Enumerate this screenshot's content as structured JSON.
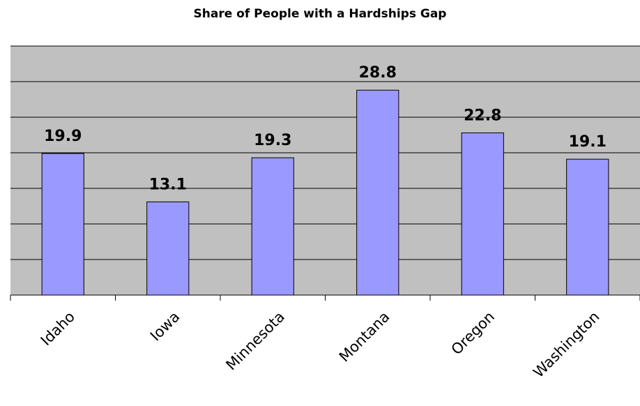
{
  "chart_data": {
    "type": "bar",
    "title": "Share of People with a Hardships Gap",
    "categories": [
      "Idaho",
      "Iowa",
      "Minnesota",
      "Montana",
      "Oregon",
      "Washington"
    ],
    "values": [
      19.9,
      13.1,
      19.3,
      28.8,
      22.8,
      19.1
    ],
    "color": "#9999ff",
    "ylim": [
      0,
      35
    ],
    "yticks": [
      0,
      5,
      10,
      15,
      20,
      25,
      30,
      35
    ],
    "grid": true
  }
}
